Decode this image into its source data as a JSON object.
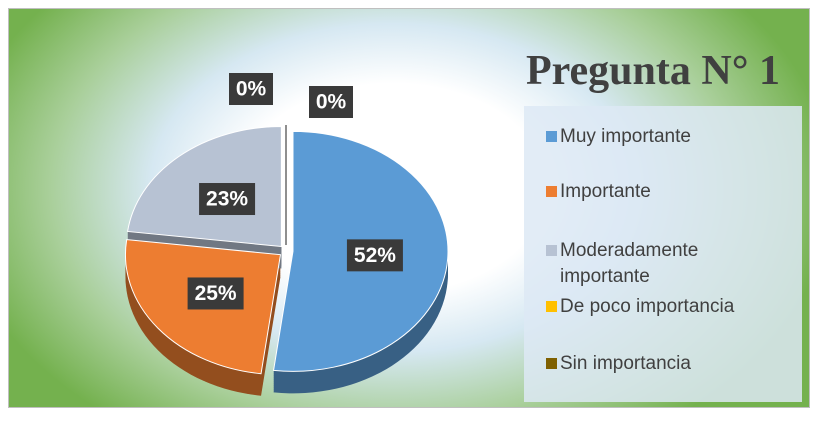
{
  "chart_data": {
    "type": "pie",
    "title": "Pregunta N° 1",
    "categories": [
      "Muy importante",
      "Importante",
      "Moderadamente importante",
      "De poco importancia",
      "Sin importancia"
    ],
    "values": [
      52,
      25,
      23,
      0,
      0
    ],
    "value_labels": [
      "52%",
      "25%",
      "23%",
      "0%",
      "0%"
    ],
    "colors": [
      "#5b9bd5",
      "#ed7d31",
      "#b7c2d3",
      "#ffc000",
      "#7f6000"
    ],
    "legend": "right"
  }
}
